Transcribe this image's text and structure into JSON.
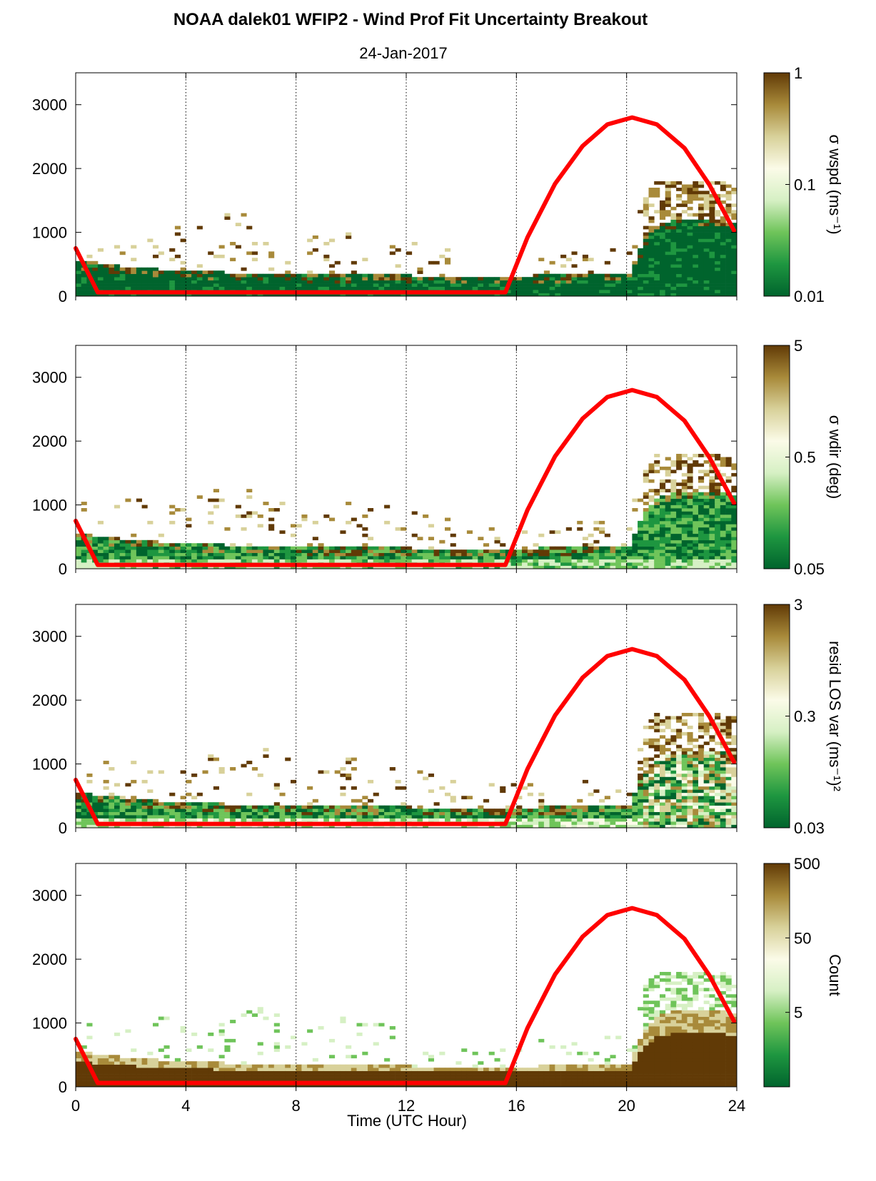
{
  "title": "NOAA dalek01 WFIP2 - Wind Prof Fit Uncertainty Breakout",
  "subtitle": "24-Jan-2017",
  "xlabel": "Time (UTC Hour)",
  "colors": {
    "sun_curve": "#ff0000",
    "colormap": [
      "#00642d",
      "#1e9640",
      "#6fc45a",
      "#d6f0c4",
      "#fbfbe8",
      "#d8d19a",
      "#a88a3a",
      "#613a06"
    ]
  },
  "chart_data": [
    {
      "type": "heatmap",
      "panel": 1,
      "xlim": [
        0,
        24
      ],
      "ylim": [
        0,
        3500
      ],
      "xticks": [
        0,
        4,
        8,
        12,
        16,
        20,
        24
      ],
      "yticks": [
        0,
        1000,
        2000,
        3000
      ],
      "grid": "vertical-dotted",
      "colorbar": {
        "label": "σ wspd (ms⁻¹)",
        "scale": "log",
        "min": 0.01,
        "max": 1,
        "tick_labels": [
          "1",
          "0.1",
          "0.01"
        ]
      },
      "curve": {
        "x": [
          0,
          0.8,
          15.6,
          16.4,
          17.4,
          18.4,
          19.3,
          20.2,
          21.1,
          22.1,
          23.0,
          23.9
        ],
        "y": [
          750,
          60,
          60,
          920,
          1760,
          2350,
          2690,
          2800,
          2690,
          2320,
          1750,
          1030
        ]
      },
      "profile": {
        "x": [
          0,
          2,
          4,
          6,
          8,
          10,
          12,
          14,
          16,
          18,
          20,
          20.6,
          21,
          22,
          23,
          23.8
        ],
        "top": [
          520,
          430,
          370,
          340,
          320,
          310,
          300,
          290,
          290,
          320,
          350,
          900,
          1100,
          1200,
          1200,
          1100
        ],
        "sparse_top": [
          1000,
          1100,
          1050,
          1350,
          1000,
          1100,
          900,
          700,
          700,
          800,
          800,
          1600,
          1800,
          1800,
          1800,
          1700
        ]
      }
    },
    {
      "type": "heatmap",
      "panel": 2,
      "xlim": [
        0,
        24
      ],
      "ylim": [
        0,
        3500
      ],
      "xticks": [
        0,
        4,
        8,
        12,
        16,
        20,
        24
      ],
      "yticks": [
        0,
        1000,
        2000,
        3000
      ],
      "grid": "vertical-dotted",
      "colorbar": {
        "label": "σ wdir (deg)",
        "scale": "log",
        "min": 0.05,
        "max": 5,
        "tick_labels": [
          "5",
          "0.5",
          "0.05"
        ]
      },
      "curve": {
        "x": [
          0,
          0.8,
          15.6,
          16.4,
          17.4,
          18.4,
          19.3,
          20.2,
          21.1,
          22.1,
          23.0,
          23.9
        ],
        "y": [
          750,
          60,
          60,
          920,
          1760,
          2350,
          2690,
          2800,
          2690,
          2320,
          1750,
          1030
        ]
      },
      "profile": {
        "x": [
          0,
          2,
          4,
          6,
          8,
          10,
          12,
          14,
          16,
          18,
          20,
          20.6,
          21,
          22,
          23,
          23.8
        ],
        "top": [
          520,
          430,
          370,
          340,
          320,
          310,
          300,
          290,
          290,
          320,
          350,
          900,
          1100,
          1200,
          1200,
          1100
        ],
        "sparse_top": [
          1000,
          1100,
          1050,
          1350,
          1000,
          1100,
          900,
          700,
          700,
          800,
          800,
          1600,
          1800,
          1800,
          1800,
          1700
        ]
      }
    },
    {
      "type": "heatmap",
      "panel": 3,
      "xlim": [
        0,
        24
      ],
      "ylim": [
        0,
        3500
      ],
      "xticks": [
        0,
        4,
        8,
        12,
        16,
        20,
        24
      ],
      "yticks": [
        0,
        1000,
        2000,
        3000
      ],
      "grid": "vertical-dotted",
      "colorbar": {
        "label": "resid LOS var (ms⁻¹)²",
        "scale": "log",
        "min": 0.03,
        "max": 3,
        "tick_labels": [
          "3",
          "0.3",
          "0.03"
        ]
      },
      "curve": {
        "x": [
          0,
          0.8,
          15.6,
          16.4,
          17.4,
          18.4,
          19.3,
          20.2,
          21.1,
          22.1,
          23.0,
          23.9
        ],
        "y": [
          750,
          60,
          60,
          920,
          1760,
          2350,
          2690,
          2800,
          2690,
          2320,
          1750,
          1030
        ]
      },
      "profile": {
        "x": [
          0,
          2,
          4,
          6,
          8,
          10,
          12,
          14,
          16,
          18,
          20,
          20.6,
          21,
          22,
          23,
          23.8
        ],
        "top": [
          520,
          430,
          370,
          340,
          320,
          310,
          300,
          290,
          290,
          320,
          350,
          900,
          1100,
          1200,
          1200,
          1100
        ],
        "sparse_top": [
          1000,
          1100,
          1050,
          1350,
          1000,
          1100,
          900,
          700,
          700,
          800,
          800,
          1600,
          1800,
          1800,
          1800,
          1700
        ]
      }
    },
    {
      "type": "heatmap",
      "panel": 4,
      "xlim": [
        0,
        24
      ],
      "ylim": [
        0,
        3500
      ],
      "xticks": [
        0,
        4,
        8,
        12,
        16,
        20,
        24
      ],
      "yticks": [
        0,
        1000,
        2000,
        3000
      ],
      "grid": "vertical-dotted",
      "colorbar": {
        "label": "Count",
        "scale": "log",
        "min": 0.5,
        "max": 500,
        "tick_labels": [
          "500",
          "50",
          "5"
        ]
      },
      "curve": {
        "x": [
          0,
          0.8,
          15.6,
          16.4,
          17.4,
          18.4,
          19.3,
          20.2,
          21.1,
          22.1,
          23.0,
          23.9
        ],
        "y": [
          750,
          60,
          60,
          920,
          1760,
          2350,
          2690,
          2800,
          2690,
          2320,
          1750,
          1030
        ]
      },
      "profile": {
        "x": [
          0,
          2,
          4,
          6,
          8,
          10,
          12,
          14,
          16,
          18,
          20,
          20.6,
          21,
          22,
          23,
          23.8
        ],
        "top": [
          520,
          430,
          370,
          340,
          320,
          310,
          300,
          290,
          290,
          320,
          350,
          900,
          1100,
          1200,
          1200,
          1100
        ],
        "sparse_top": [
          1000,
          1100,
          1050,
          1350,
          1000,
          1100,
          900,
          700,
          700,
          800,
          800,
          1600,
          1800,
          1800,
          1800,
          1700
        ]
      }
    }
  ]
}
